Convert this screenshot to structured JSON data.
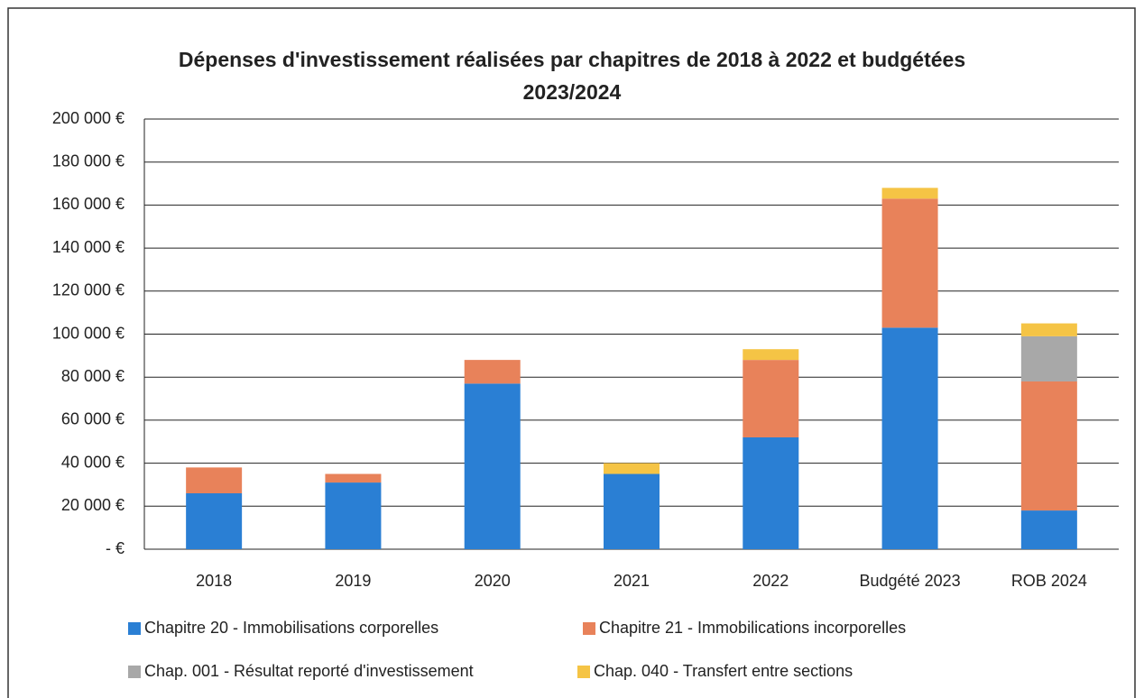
{
  "chart_data": {
    "type": "stacked_bar",
    "title": "Dépenses d'investissement réalisées par chapitres de 2018 à 2022 et budgétées 2023/2024",
    "categories": [
      "2018",
      "2019",
      "2020",
      "2021",
      "2022",
      "Budgété 2023",
      "ROB 2024"
    ],
    "series": [
      {
        "name": "Chapitre 20 - Immobilisations corporelles",
        "color": "#2a7fd4",
        "values": [
          26000,
          31000,
          77000,
          35000,
          52000,
          103000,
          18000
        ]
      },
      {
        "name": "Chapitre 21 - Immobilications incorporelles",
        "color": "#e8825a",
        "values": [
          12000,
          4000,
          11000,
          0,
          36000,
          60000,
          60000
        ]
      },
      {
        "name": "Chap. 001 - Résultat reporté d'investissement",
        "color": "#a8a8a8",
        "values": [
          0,
          0,
          0,
          0,
          0,
          0,
          21000
        ]
      },
      {
        "name": "Chap. 040 - Transfert entre sections",
        "color": "#f5c445",
        "values": [
          0,
          0,
          0,
          5000,
          5000,
          5000,
          6000
        ]
      }
    ],
    "ylim": [
      0,
      200000
    ],
    "yticks": [
      {
        "value": 0,
        "label": "- €"
      },
      {
        "value": 20000,
        "label": "20 000 €"
      },
      {
        "value": 40000,
        "label": "40 000 €"
      },
      {
        "value": 60000,
        "label": "60 000 €"
      },
      {
        "value": 80000,
        "label": "80 000 €"
      },
      {
        "value": 100000,
        "label": "100 000 €"
      },
      {
        "value": 120000,
        "label": "120 000 €"
      },
      {
        "value": 140000,
        "label": "140 000 €"
      },
      {
        "value": 160000,
        "label": "160 000 €"
      },
      {
        "value": 180000,
        "label": "180 000 €"
      },
      {
        "value": 200000,
        "label": "200 000 €"
      }
    ],
    "grid": true
  }
}
